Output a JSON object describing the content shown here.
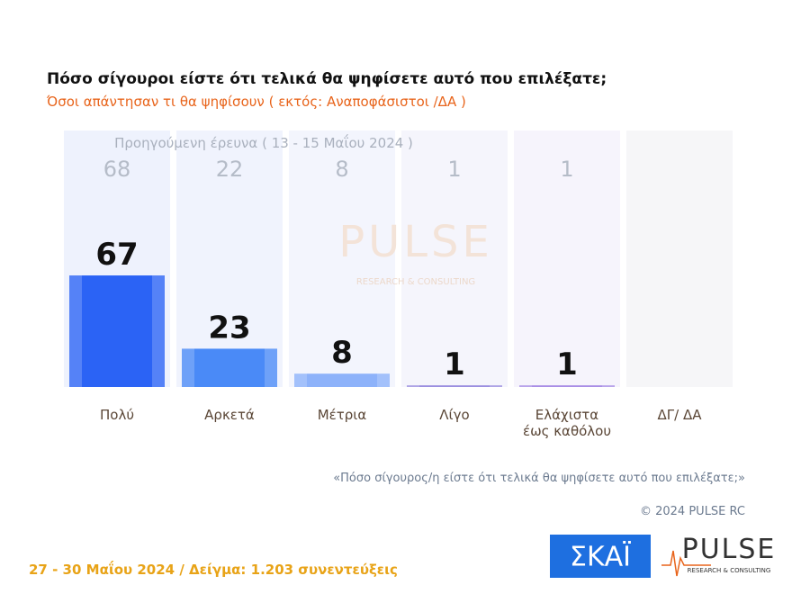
{
  "chart_data": {
    "type": "bar",
    "title": "Πόσο σίγουροι είστε ότι τελικά θα ψηφίσετε αυτό που επιλέξατε;",
    "subtitle": "Όσοι απάντησαν τι θα ψηφίσουν ( εκτός: Αναποφάσιστοι /ΔΑ )",
    "categories": [
      "Πολύ",
      "Αρκετά",
      "Μέτρια",
      "Λίγο",
      "Ελάχιστα έως καθόλου",
      "ΔΓ/ ΔΑ"
    ],
    "values": [
      67,
      23,
      8,
      1,
      1,
      null
    ],
    "colors": [
      "#2b63f5",
      "#4a8af7",
      "#8db2fa",
      "#9b8fe0",
      "#a98ee6",
      "#cccccc"
    ],
    "previous_label": "Προηγούμενη έρευνα ( 13 - 15 Μαΐου 2024 )",
    "previous_values": [
      68,
      22,
      8,
      1,
      1,
      null
    ],
    "note": "«Πόσο σίγουρος/η είστε ότι τελικά θα ψηφίσετε αυτό που επιλέξατε;»",
    "copyright": "© 2024 PULSE RC",
    "footer": "27 - 30  Μαΐου 2024  /  Δείγμα:  1.203 συνεντεύξεις"
  },
  "logos": {
    "skai": "ΣΚΑΪ",
    "pulse": "PULSE",
    "pulse_sub": "RESEARCH & CONSULTING"
  }
}
